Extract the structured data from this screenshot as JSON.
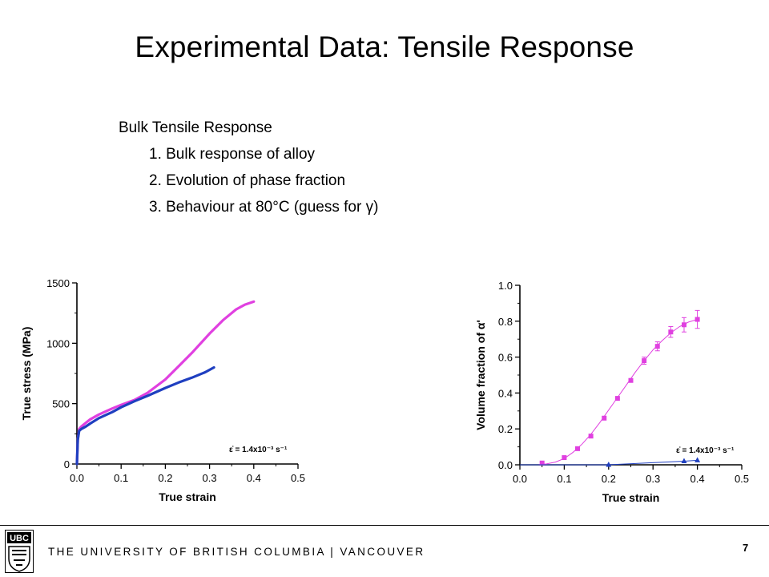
{
  "slide": {
    "title": "Experimental Data: Tensile Response",
    "bullets": [
      "Bulk Tensile Response",
      "1. Bulk response of alloy",
      "2. Evolution of phase fraction",
      "3. Behaviour at 80°C (guess for γ)"
    ],
    "footer": {
      "university": "THE UNIVERSITY OF BRITISH COLUMBIA | VANCOUVER",
      "logo_text": "UBC",
      "page_number": "7"
    }
  },
  "chart_data": [
    {
      "type": "line",
      "xlabel": "True strain",
      "ylabel": "True stress (MPa)",
      "xlim": [
        0.0,
        0.5
      ],
      "ylim": [
        0,
        1500
      ],
      "xticks": [
        "0.0",
        "0.1",
        "0.2",
        "0.3",
        "0.4",
        "0.5"
      ],
      "yticks": [
        "0",
        "500",
        "1000",
        "1500"
      ],
      "annotation": "ε̇ = 1.4x10⁻³ s⁻¹",
      "series": [
        {
          "color": "#e040e0",
          "x": [
            0.0,
            0.002,
            0.005,
            0.01,
            0.02,
            0.03,
            0.05,
            0.08,
            0.1,
            0.13,
            0.16,
            0.2,
            0.23,
            0.26,
            0.3,
            0.33,
            0.36,
            0.38,
            0.4
          ],
          "y": [
            0,
            200,
            290,
            310,
            340,
            370,
            410,
            460,
            490,
            530,
            590,
            700,
            810,
            920,
            1080,
            1190,
            1280,
            1320,
            1345
          ]
        },
        {
          "color": "#1f3fc0",
          "x": [
            0.0,
            0.002,
            0.005,
            0.01,
            0.02,
            0.03,
            0.05,
            0.08,
            0.1,
            0.13,
            0.16,
            0.2,
            0.23,
            0.26,
            0.29,
            0.31
          ],
          "y": [
            0,
            200,
            275,
            290,
            310,
            335,
            380,
            430,
            470,
            520,
            565,
            630,
            675,
            715,
            760,
            800
          ]
        }
      ]
    },
    {
      "type": "scatter",
      "xlabel": "True strain",
      "ylabel": "Volume fraction of α'",
      "xlim": [
        0.0,
        0.5
      ],
      "ylim": [
        0.0,
        1.0
      ],
      "xticks": [
        "0.0",
        "0.1",
        "0.2",
        "0.3",
        "0.4",
        "0.5"
      ],
      "yticks": [
        "0.0",
        "0.2",
        "0.4",
        "0.6",
        "0.8",
        "1.0"
      ],
      "annotation": "ε̇ = 1.4x10⁻³ s⁻¹",
      "series": [
        {
          "color": "#e040e0",
          "marker": "square",
          "x": [
            0.05,
            0.1,
            0.13,
            0.16,
            0.19,
            0.22,
            0.25,
            0.28,
            0.31,
            0.34,
            0.37,
            0.4
          ],
          "y": [
            0.01,
            0.04,
            0.09,
            0.16,
            0.26,
            0.37,
            0.47,
            0.58,
            0.66,
            0.74,
            0.78,
            0.81
          ],
          "err": [
            0,
            0,
            0,
            0,
            0,
            0,
            0,
            0.02,
            0.025,
            0.03,
            0.04,
            0.05
          ],
          "fit": {
            "x": [
              0.0,
              0.04,
              0.06,
              0.08,
              0.1,
              0.12,
              0.14,
              0.16,
              0.18,
              0.2,
              0.22,
              0.24,
              0.26,
              0.28,
              0.3,
              0.32,
              0.34,
              0.36,
              0.38,
              0.4
            ],
            "y": [
              0.0,
              0.0,
              0.005,
              0.015,
              0.035,
              0.07,
              0.115,
              0.17,
              0.235,
              0.305,
              0.375,
              0.445,
              0.515,
              0.58,
              0.64,
              0.69,
              0.735,
              0.77,
              0.795,
              0.81
            ]
          }
        },
        {
          "color": "#1f3fc0",
          "marker": "triangle",
          "x": [
            0.2,
            0.37,
            0.4
          ],
          "y": [
            0.0,
            0.02,
            0.025
          ],
          "line_x": [
            0.0,
            0.2,
            0.37,
            0.4
          ],
          "line_y": [
            0.0,
            0.0,
            0.02,
            0.025
          ]
        }
      ]
    }
  ]
}
